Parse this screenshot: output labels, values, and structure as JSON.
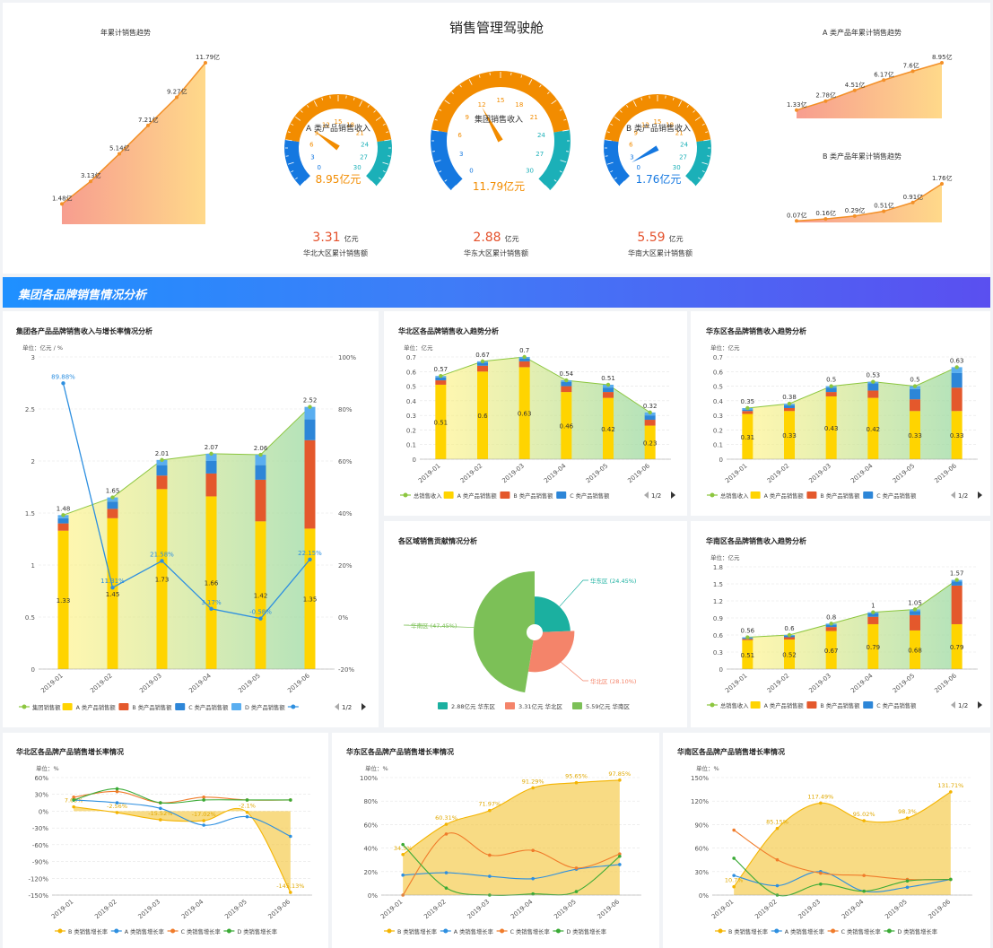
{
  "header": {
    "title": "销售管理驾驶舱"
  },
  "banner": {
    "title": "集团各品牌销售情况分析"
  },
  "colors": {
    "gauge_orange": "#f28c00",
    "gauge_blue": "#1578e0",
    "gauge_teal": "#1bb0b8",
    "red_text": "#e4512c",
    "A": "#ffd400",
    "B": "#e4582c",
    "C": "#2d86d8",
    "D": "#5aaef0",
    "total": "#8cc63f"
  },
  "trend_total": {
    "title": "年累计销售趋势",
    "labels": [
      "1.48亿",
      "3.13亿",
      "5.14亿",
      "7.21亿",
      "9.27亿",
      "11.79亿"
    ],
    "values": [
      1.48,
      3.13,
      5.14,
      7.21,
      9.27,
      11.79
    ]
  },
  "trend_a": {
    "title": "A 类产品年累计销售趋势",
    "labels": [
      "1.33亿",
      "2.78亿",
      "4.51亿",
      "6.17亿",
      "7.6亿",
      "8.95亿"
    ],
    "values": [
      1.33,
      2.78,
      4.51,
      6.17,
      7.6,
      8.95
    ]
  },
  "trend_b": {
    "title": "B 类产品年累计销售趋势",
    "labels": [
      "0.07亿",
      "0.16亿",
      "0.29亿",
      "0.51亿",
      "0.91亿",
      "1.76亿"
    ],
    "values": [
      0.07,
      0.16,
      0.29,
      0.51,
      0.91,
      1.76
    ]
  },
  "gauges": [
    {
      "name": "A 类产品销售收入",
      "value": 8.95,
      "value_text": "8.95亿元",
      "value_color": "#f28c00",
      "needle_color": "#f28c00"
    },
    {
      "name": "集团销售收入",
      "value": 11.79,
      "value_text": "11.79亿元",
      "value_color": "#f28c00",
      "needle_color": "#f28c00"
    },
    {
      "name": "B 类产品销售收入",
      "value": 1.76,
      "value_text": "1.76亿元",
      "value_color": "#1578e0",
      "needle_color": "#1578e0"
    }
  ],
  "gauge_ticks": [
    "0",
    "3",
    "6",
    "9",
    "12",
    "15",
    "18",
    "21",
    "24",
    "27",
    "30"
  ],
  "stats": [
    {
      "num": "3.31",
      "unit": "亿元",
      "label": "华北大区累计销售额"
    },
    {
      "num": "2.88",
      "unit": "亿元",
      "label": "华东大区累计销售额"
    },
    {
      "num": "5.59",
      "unit": "亿元",
      "label": "华南大区累计销售额"
    }
  ],
  "legend_labels": {
    "total_group": "集团销售额",
    "total": "总销售收入",
    "A": "A 类产品销售额",
    "B": "B 类产品销售额",
    "C": "C 类产品销售额",
    "D": "D 类产品销售额",
    "page": "1/2"
  },
  "unit_labels": {
    "main": "单位：亿元 / %",
    "region": "单位：亿元",
    "pct": "单位：%"
  },
  "chart_data": [
    {
      "id": "main",
      "type": "bar",
      "title": "集团各产品品牌销售收入与增长率情况分析",
      "categories": [
        "2019-01",
        "2019-02",
        "2019-03",
        "2019-04",
        "2019-05",
        "2019-06"
      ],
      "ylim": [
        0,
        3
      ],
      "y2lim": [
        -20,
        100
      ],
      "yticks": [
        "0",
        "0.5",
        "1",
        "1.5",
        "2",
        "2.5",
        "3"
      ],
      "y2ticks": [
        "-20%",
        "0%",
        "20%",
        "40%",
        "60%",
        "80%",
        "100%"
      ],
      "totals": [
        1.48,
        1.65,
        2.01,
        2.07,
        2.06,
        2.52
      ],
      "series": [
        {
          "name": "A 类产品销售额",
          "values": [
            1.33,
            1.45,
            1.73,
            1.66,
            1.42,
            1.35
          ]
        },
        {
          "name": "B 类产品销售额",
          "values": [
            0.07,
            0.09,
            0.13,
            0.22,
            0.4,
            0.85
          ]
        },
        {
          "name": "C 类产品销售额",
          "values": [
            0.05,
            0.07,
            0.1,
            0.12,
            0.14,
            0.2
          ]
        },
        {
          "name": "D 类产品销售额",
          "values": [
            0.03,
            0.04,
            0.05,
            0.07,
            0.1,
            0.12
          ]
        }
      ],
      "growth": [
        89.88,
        11.31,
        21.58,
        3.17,
        -0.58,
        22.15
      ],
      "growth_labels": [
        "89.88%",
        "11.31%",
        "21.58%",
        "3.17%",
        "-0.58%",
        "22.15%"
      ]
    },
    {
      "id": "north",
      "type": "bar",
      "title": "华北区各品牌销售收入趋势分析",
      "categories": [
        "2019-01",
        "2019-02",
        "2019-03",
        "2019-04",
        "2019-05",
        "2019-06"
      ],
      "ylim": [
        0,
        0.7
      ],
      "yticks": [
        "0",
        "0.1",
        "0.2",
        "0.3",
        "0.4",
        "0.5",
        "0.6",
        "0.7"
      ],
      "totals": [
        0.57,
        0.67,
        0.7,
        0.54,
        0.51,
        0.32
      ],
      "series": [
        {
          "name": "A 类产品销售额",
          "values": [
            0.51,
            0.6,
            0.63,
            0.46,
            0.42,
            0.23
          ]
        },
        {
          "name": "B 类产品销售额",
          "values": [
            0.03,
            0.04,
            0.04,
            0.04,
            0.04,
            0.04
          ]
        },
        {
          "name": "C 类产品销售额",
          "values": [
            0.02,
            0.02,
            0.02,
            0.03,
            0.03,
            0.03
          ]
        },
        {
          "name": "D 类产品销售额",
          "values": [
            0.01,
            0.01,
            0.01,
            0.01,
            0.02,
            0.02
          ]
        }
      ]
    },
    {
      "id": "east",
      "type": "bar",
      "title": "华东区各品牌销售收入趋势分析",
      "categories": [
        "2019-01",
        "2019-02",
        "2019-03",
        "2019-04",
        "2019-05",
        "2019-06"
      ],
      "ylim": [
        0,
        0.7
      ],
      "yticks": [
        "0",
        "0.1",
        "0.2",
        "0.3",
        "0.4",
        "0.5",
        "0.6",
        "0.7"
      ],
      "totals": [
        0.35,
        0.38,
        0.5,
        0.53,
        0.5,
        0.63
      ],
      "series": [
        {
          "name": "A 类产品销售额",
          "values": [
            0.31,
            0.33,
            0.43,
            0.42,
            0.33,
            0.33
          ]
        },
        {
          "name": "B 类产品销售额",
          "values": [
            0.02,
            0.02,
            0.03,
            0.05,
            0.08,
            0.16
          ]
        },
        {
          "name": "C 类产品销售额",
          "values": [
            0.01,
            0.02,
            0.03,
            0.05,
            0.07,
            0.1
          ]
        },
        {
          "name": "D 类产品销售额",
          "values": [
            0.01,
            0.01,
            0.01,
            0.01,
            0.02,
            0.04
          ]
        }
      ]
    },
    {
      "id": "south",
      "type": "bar",
      "title": "华南区各品牌销售收入趋势分析",
      "categories": [
        "2019-01",
        "2019-02",
        "2019-03",
        "2019-04",
        "2019-05",
        "2019-06"
      ],
      "ylim": [
        0,
        1.8
      ],
      "yticks": [
        "0",
        "0.3",
        "0.6",
        "0.9",
        "1.2",
        "1.5",
        "1.8"
      ],
      "totals": [
        0.56,
        0.6,
        0.8,
        1,
        1.05,
        1.57
      ],
      "series": [
        {
          "name": "A 类产品销售额",
          "values": [
            0.51,
            0.52,
            0.67,
            0.79,
            0.68,
            0.79
          ]
        },
        {
          "name": "B 类产品销售额",
          "values": [
            0.02,
            0.04,
            0.07,
            0.13,
            0.27,
            0.68
          ]
        },
        {
          "name": "C 类产品销售额",
          "values": [
            0.02,
            0.03,
            0.04,
            0.06,
            0.07,
            0.07
          ]
        },
        {
          "name": "D 类产品销售额",
          "values": [
            0.01,
            0.01,
            0.02,
            0.02,
            0.03,
            0.03
          ]
        }
      ]
    },
    {
      "id": "pie",
      "type": "pie",
      "title": "各区域销售贡献情况分析",
      "slices": [
        {
          "name": "华东区",
          "value": 2.88,
          "pct": "华东区 (24.45%)",
          "legend": "2.88亿元  华东区",
          "color": "#1bb0a0"
        },
        {
          "name": "华北区",
          "value": 3.31,
          "pct": "华北区 (28.10%)",
          "legend": "3.31亿元  华北区",
          "color": "#f4846a"
        },
        {
          "name": "华南区",
          "value": 5.59,
          "pct": "华南区 (47.45%)",
          "legend": "5.59亿元  华南区",
          "color": "#7cc057"
        }
      ]
    },
    {
      "id": "g_north",
      "type": "line",
      "title": "华北区各品牌产品销售增长率情况",
      "categories": [
        "2019-01",
        "2019-02",
        "2019-03",
        "2019-04",
        "2019-05",
        "2019-06"
      ],
      "ylim": [
        -150,
        60
      ],
      "yticks": [
        "-150%",
        "-120%",
        "-90%",
        "-60%",
        "-30%",
        "0%",
        "30%",
        "60%"
      ],
      "series": [
        {
          "name": "B 类销售增长率",
          "values": [
            7.69,
            -2.56,
            -15.52,
            -17.02,
            -2.1,
            -145.13
          ],
          "labels": [
            "7.69%",
            "-2.56%",
            "-15.52%",
            "-17.02%",
            "-2.1%",
            "-145.13%"
          ],
          "color": "#f4b400"
        },
        {
          "name": "A 类销售增长率",
          "values": [
            20,
            15,
            5,
            -25,
            -10,
            -45
          ],
          "color": "#2d8fe0"
        },
        {
          "name": "C 类销售增长率",
          "values": [
            25,
            35,
            15,
            25,
            20,
            20
          ],
          "color": "#f07c2b"
        },
        {
          "name": "D 类销售增长率",
          "values": [
            20,
            40,
            15,
            20,
            20,
            20
          ],
          "color": "#3aaa35"
        }
      ]
    },
    {
      "id": "g_east",
      "type": "line",
      "title": "华东区各品牌产品销售增长率情况",
      "categories": [
        "2019-01",
        "2019-02",
        "2019-03",
        "2019-04",
        "2019-05",
        "2019-06"
      ],
      "ylim": [
        0,
        100
      ],
      "yticks": [
        "0%",
        "20%",
        "40%",
        "60%",
        "80%",
        "100%"
      ],
      "series": [
        {
          "name": "B 类销售增长率",
          "values": [
            34.5,
            60.31,
            71.97,
            91.29,
            95.65,
            97.85
          ],
          "labels": [
            "34.5%",
            "60.31%",
            "71.97%",
            "91.29%",
            "95.65%",
            "97.85%"
          ],
          "color": "#f4b400"
        },
        {
          "name": "A 类销售增长率",
          "values": [
            17,
            19,
            16,
            14,
            22,
            26
          ],
          "color": "#2d8fe0"
        },
        {
          "name": "C 类销售增长率",
          "values": [
            0,
            52,
            34,
            38,
            23,
            35
          ],
          "color": "#f07c2b"
        },
        {
          "name": "D 类销售增长率",
          "values": [
            43,
            6,
            0,
            1,
            3,
            33
          ],
          "color": "#3aaa35"
        }
      ]
    },
    {
      "id": "g_south",
      "type": "line",
      "title": "华南区各品牌产品销售增长率情况",
      "categories": [
        "2019-01",
        "2019-02",
        "2019-03",
        "2019-04",
        "2019-05",
        "2019-06"
      ],
      "ylim": [
        0,
        150
      ],
      "yticks": [
        "0%",
        "30%",
        "60%",
        "90%",
        "120%",
        "150%"
      ],
      "series": [
        {
          "name": "B 类销售增长率",
          "values": [
            10.7,
            85.15,
            117.49,
            95.02,
            98.3,
            131.71
          ],
          "labels": [
            "10.7%",
            "85.15%",
            "117.49%",
            "95.02%",
            "98.3%",
            "131.71%"
          ],
          "color": "#f4b400"
        },
        {
          "name": "A 类销售增长率",
          "values": [
            25,
            12,
            30,
            5,
            10,
            20
          ],
          "color": "#2d8fe0"
        },
        {
          "name": "C 类销售增长率",
          "values": [
            83,
            45,
            28,
            25,
            20,
            20
          ],
          "color": "#f07c2b"
        },
        {
          "name": "D 类销售增长率",
          "values": [
            47,
            0,
            14,
            5,
            18,
            20
          ],
          "color": "#3aaa35"
        }
      ]
    }
  ]
}
